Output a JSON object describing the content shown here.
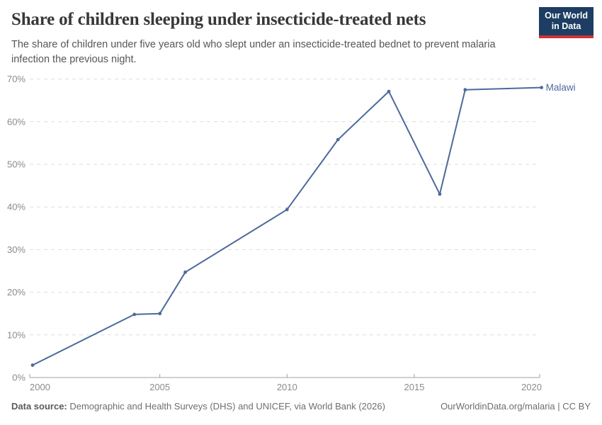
{
  "header": {
    "title": "Share of children sleeping under insecticide-treated nets",
    "subtitle": "The share of children under five years old who slept under an insecticide-treated bednet to prevent malaria infection the previous night.",
    "logo": {
      "line1": "Our World",
      "line2": "in Data"
    }
  },
  "chart_data": {
    "type": "line",
    "title": "Share of children sleeping under insecticide-treated nets",
    "xlabel": "",
    "ylabel": "",
    "xlim": [
      1999.9,
      2020.1
    ],
    "ylim": [
      0,
      70
    ],
    "grid": "horizontal-dashed",
    "legend_position": "end-of-line",
    "x_ticks": [
      2000,
      2005,
      2010,
      2015,
      2020
    ],
    "y_ticks": [
      0,
      10,
      20,
      30,
      40,
      50,
      60,
      70
    ],
    "y_tick_suffix": "%",
    "series": [
      {
        "name": "Malawi",
        "color": "#4C6A9C",
        "points": [
          {
            "x": 2000,
            "y": 2.9
          },
          {
            "x": 2004,
            "y": 14.8
          },
          {
            "x": 2005,
            "y": 15.0
          },
          {
            "x": 2006,
            "y": 24.7
          },
          {
            "x": 2010,
            "y": 39.4
          },
          {
            "x": 2012,
            "y": 55.8
          },
          {
            "x": 2014,
            "y": 67.1
          },
          {
            "x": 2016,
            "y": 43.0
          },
          {
            "x": 2017,
            "y": 67.5
          },
          {
            "x": 2020,
            "y": 68.0
          }
        ]
      }
    ]
  },
  "footer": {
    "datasource_label": "Data source:",
    "datasource_text": " Demographic and Health Surveys (DHS) and UNICEF, via World Bank (2026)",
    "credit": "OurWorldinData.org/malaria | CC BY"
  },
  "colors": {
    "line": "#4C6A9C",
    "gridline": "#dddddd",
    "axis": "#a1a1a1",
    "tick_label": "#8b8b8b",
    "title_text": "#383838",
    "subtitle_text": "#565656",
    "logo_bg": "#1d3d63",
    "logo_stripe": "#cf3434"
  }
}
